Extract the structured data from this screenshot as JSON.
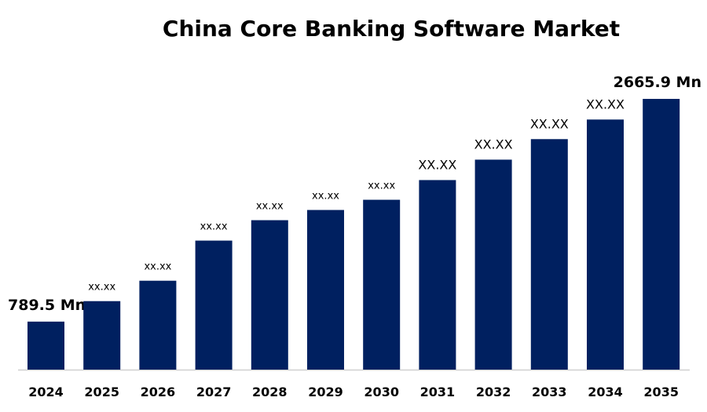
{
  "chart_data": {
    "type": "bar",
    "title": "China Core Banking Software Market",
    "xlabel": "",
    "ylabel": "",
    "categories": [
      "2024",
      "2025",
      "2026",
      "2027",
      "2028",
      "2029",
      "2030",
      "2031",
      "2032",
      "2033",
      "2034",
      "2035"
    ],
    "values": [
      789.5,
      962,
      1134,
      1472,
      1644,
      1730,
      1816,
      1982,
      2154,
      2327,
      2492,
      2665.9
    ],
    "data_labels": [
      "789.5 Mn",
      "xx.xx",
      "xx.xx",
      "xx.xx",
      "xx.xx",
      "xx.xx",
      "xx.xx",
      "XX.XX",
      "XX.XX",
      "XX.XX",
      "XX.XX",
      "2665.9 Mn"
    ],
    "ylim": [
      385,
      2666
    ],
    "grid": false,
    "legend": "none",
    "bar_color": "#002060"
  }
}
